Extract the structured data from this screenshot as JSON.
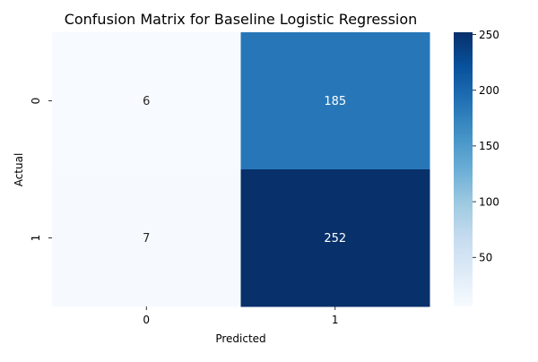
{
  "chart_data": {
    "type": "heatmap",
    "title": "Confusion Matrix for Baseline Logistic Regression",
    "xlabel": "Predicted",
    "ylabel": "Actual",
    "x_categories": [
      "0",
      "1"
    ],
    "y_categories": [
      "0",
      "1"
    ],
    "values": [
      [
        6,
        185
      ],
      [
        7,
        252
      ]
    ],
    "annotations": [
      "6",
      "185",
      "7",
      "252"
    ],
    "colormap": "Blues",
    "color_range": [
      6,
      252
    ],
    "colorbar_ticks": [
      50,
      100,
      150,
      200,
      250
    ],
    "colorbar_tick_labels": [
      "50",
      "100",
      "150",
      "200",
      "250"
    ],
    "colorbar_position": "right",
    "grid": false
  }
}
